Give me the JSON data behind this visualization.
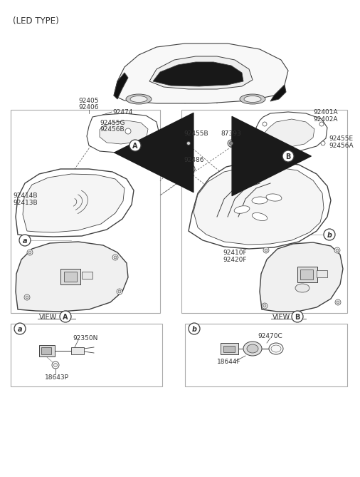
{
  "bg_color": "#ffffff",
  "line_color": "#404040",
  "text_color": "#333333",
  "fs": 6.5,
  "fs_title": 8.5,
  "labels": {
    "led_type": "(LED TYPE)",
    "92405": "92405",
    "92406": "92406",
    "92474": "92474",
    "92455G": "92455G",
    "92456B": "92456B",
    "92414B": "92414B",
    "92413B": "92413B",
    "92455B": "92455B",
    "87393": "87393",
    "92486": "92486",
    "92401A": "92401A",
    "92402A": "92402A",
    "92455E": "92455E",
    "92456A": "92456A",
    "92410F": "92410F",
    "92420F": "92420F",
    "view_A": "VIEW",
    "view_B": "VIEW",
    "92350N": "92350N",
    "18643P": "18643P",
    "92470C": "92470C",
    "18644F": "18644F"
  }
}
